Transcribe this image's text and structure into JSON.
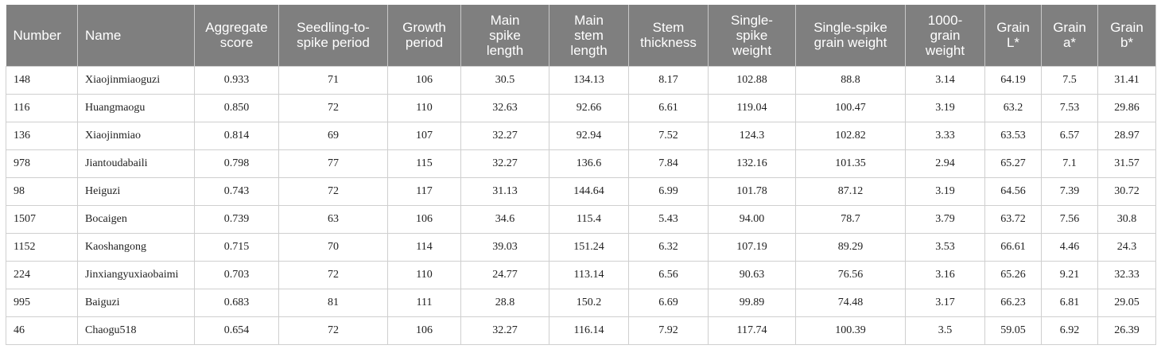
{
  "table": {
    "headers": [
      "Number",
      "Name",
      "Aggregate\nscore",
      "Seedling-to-\nspike period",
      "Growth\nperiod",
      "Main\nspike\nlength",
      "Main\nstem\nlength",
      "Stem\nthickness",
      "Single-\nspike\nweight",
      "Single-spike\ngrain weight",
      "1000-\ngrain\nweight",
      "Grain\nL*",
      "Grain\na*",
      "Grain\nb*"
    ],
    "rows": [
      [
        "148",
        "Xiaojinmiaoguzi",
        "0.933",
        "71",
        "106",
        "30.5",
        "134.13",
        "8.17",
        "102.88",
        "88.8",
        "3.14",
        "64.19",
        "7.5",
        "31.41"
      ],
      [
        "116",
        "Huangmaogu",
        "0.850",
        "72",
        "110",
        "32.63",
        "92.66",
        "6.61",
        "119.04",
        "100.47",
        "3.19",
        "63.2",
        "7.53",
        "29.86"
      ],
      [
        "136",
        "Xiaojinmiao",
        "0.814",
        "69",
        "107",
        "32.27",
        "92.94",
        "7.52",
        "124.3",
        "102.82",
        "3.33",
        "63.53",
        "6.57",
        "28.97"
      ],
      [
        "978",
        "Jiantoudabaili",
        "0.798",
        "77",
        "115",
        "32.27",
        "136.6",
        "7.84",
        "132.16",
        "101.35",
        "2.94",
        "65.27",
        "7.1",
        "31.57"
      ],
      [
        "98",
        "Heiguzi",
        "0.743",
        "72",
        "117",
        "31.13",
        "144.64",
        "6.99",
        "101.78",
        "87.12",
        "3.19",
        "64.56",
        "7.39",
        "30.72"
      ],
      [
        "1507",
        "Bocaigen",
        "0.739",
        "63",
        "106",
        "34.6",
        "115.4",
        "5.43",
        "94.00",
        "78.7",
        "3.79",
        "63.72",
        "7.56",
        "30.8"
      ],
      [
        "1152",
        "Kaoshangong",
        "0.715",
        "70",
        "114",
        "39.03",
        "151.24",
        "6.32",
        "107.19",
        "89.29",
        "3.53",
        "66.61",
        "4.46",
        "24.3"
      ],
      [
        "224",
        "Jinxiangyuxiaobaimi",
        "0.703",
        "72",
        "110",
        "24.77",
        "113.14",
        "6.56",
        "90.63",
        "76.56",
        "3.16",
        "65.26",
        "9.21",
        "32.33"
      ],
      [
        "995",
        "Baiguzi",
        "0.683",
        "81",
        "111",
        "28.8",
        "150.2",
        "6.69",
        "99.89",
        "74.48",
        "3.17",
        "66.23",
        "6.81",
        "29.05"
      ],
      [
        "46",
        "Chaogu518",
        "0.654",
        "72",
        "106",
        "32.27",
        "116.14",
        "7.92",
        "117.74",
        "100.39",
        "3.5",
        "59.05",
        "6.92",
        "26.39"
      ]
    ]
  }
}
